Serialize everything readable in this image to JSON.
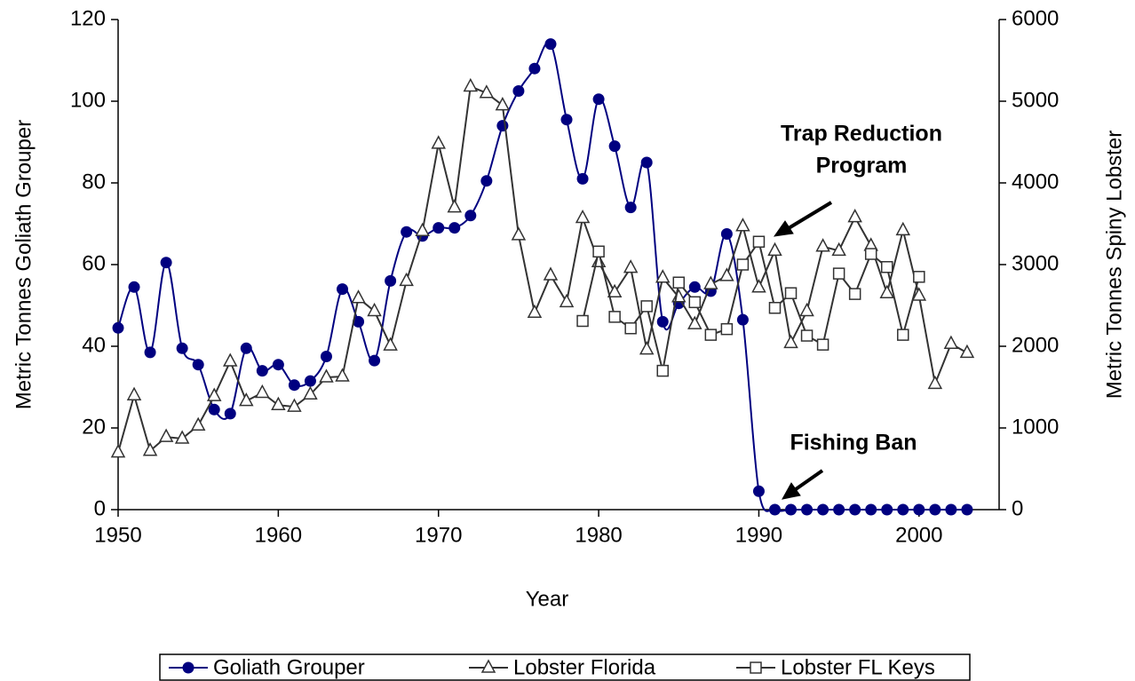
{
  "chart_data": {
    "type": "line",
    "x_label": "Year",
    "y_label": "Metric Tonnes Goliath Grouper",
    "y2_label": "Metric Tonnes Spiny Lobster",
    "x": [
      1950,
      1951,
      1952,
      1953,
      1954,
      1955,
      1956,
      1957,
      1958,
      1959,
      1960,
      1961,
      1962,
      1963,
      1964,
      1965,
      1966,
      1967,
      1968,
      1969,
      1970,
      1971,
      1972,
      1973,
      1974,
      1975,
      1976,
      1977,
      1978,
      1979,
      1980,
      1981,
      1982,
      1983,
      1984,
      1985,
      1986,
      1987,
      1988,
      1989,
      1990,
      1991,
      1992,
      1993,
      1994,
      1995,
      1996,
      1997,
      1998,
      1999,
      2000,
      2001,
      2002,
      2003
    ],
    "series": [
      {
        "name": "Goliath Grouper",
        "color": "#000080",
        "marker": "circle",
        "smooth": true,
        "values": [
          44.5,
          54.5,
          38.5,
          60.5,
          39.5,
          35.5,
          24.5,
          23.5,
          39.5,
          34,
          35.5,
          30.5,
          31.5,
          37.5,
          54,
          46,
          36.5,
          56,
          68,
          67,
          69,
          69,
          72,
          80.5,
          94,
          102.5,
          108,
          114,
          95.5,
          81,
          100.5,
          89,
          74,
          85,
          46,
          50.5,
          54.5,
          53.5,
          67.5,
          46.5,
          4.5,
          0,
          0,
          0,
          0,
          0,
          0,
          0,
          0,
          0,
          0,
          0,
          0,
          0
        ]
      },
      {
        "name": "Lobster Florida",
        "color": "#333333",
        "marker": "triangle",
        "axis": "y2",
        "values": [
          700,
          1400,
          720,
          890,
          870,
          1030,
          1390,
          1815,
          1330,
          1430,
          1280,
          1260,
          1410,
          1620,
          1630,
          2590,
          2430,
          2010,
          2800,
          3410,
          4480,
          3700,
          5180,
          5100,
          4950,
          3360,
          2410,
          2870,
          2540,
          3570,
          3030,
          2660,
          2960,
          1960,
          2840,
          2600,
          2270,
          2760,
          2860,
          3470,
          2720,
          3170,
          2040,
          2430,
          3220,
          3170,
          3580,
          3230,
          2650,
          3420,
          2620,
          1540,
          2030,
          1920
        ]
      },
      {
        "name": "Lobster FL Keys",
        "color": "#333333",
        "marker": "square",
        "axis": "y2",
        "values": [
          null,
          null,
          null,
          null,
          null,
          null,
          null,
          null,
          null,
          null,
          null,
          null,
          null,
          null,
          null,
          null,
          null,
          null,
          null,
          null,
          null,
          null,
          null,
          null,
          null,
          null,
          null,
          null,
          null,
          2310,
          3160,
          2360,
          2220,
          2490,
          1700,
          2780,
          2540,
          2140,
          2210,
          3000,
          3280,
          2470,
          2650,
          2130,
          2020,
          2890,
          2640,
          3130,
          2970,
          2140,
          2850,
          null,
          null,
          null
        ]
      }
    ],
    "xlim": [
      1950,
      2005
    ],
    "xticks": [
      1950,
      1960,
      1970,
      1980,
      1990,
      2000
    ],
    "ylim": [
      0,
      120
    ],
    "yticks": [
      0,
      20,
      40,
      60,
      80,
      100,
      120
    ],
    "y2lim": [
      0,
      6000
    ],
    "y2ticks": [
      0,
      1000,
      2000,
      3000,
      4000,
      5000,
      6000
    ],
    "annotations": [
      {
        "lines": [
          "Trap Reduction",
          "Program"
        ]
      },
      {
        "lines": [
          "Fishing Ban"
        ]
      }
    ]
  }
}
